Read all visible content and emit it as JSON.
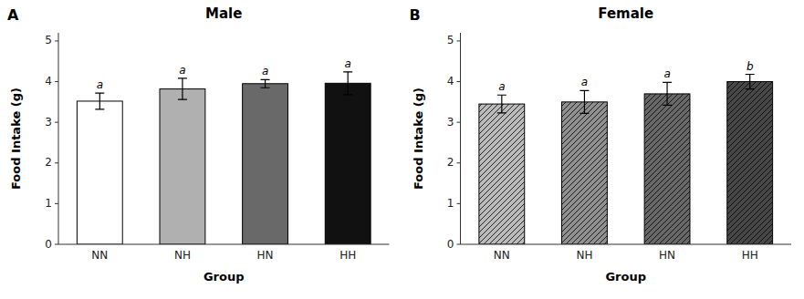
{
  "chart_data": [
    {
      "type": "bar",
      "title": "Male",
      "categories": [
        "NN",
        "NH",
        "HN",
        "HH"
      ],
      "values": [
        3.52,
        3.82,
        3.95,
        3.96
      ],
      "errors": [
        0.2,
        0.26,
        0.1,
        0.28
      ],
      "colors": [
        "#ffffff",
        "#b0b0b0",
        "#696969",
        "#111111"
      ],
      "x_label": "Group",
      "y_label": "Food Intake (g)",
      "ylim": [
        0,
        5.2
      ],
      "yticks": [
        0,
        1,
        2,
        3,
        4,
        5
      ],
      "grid": false,
      "annotations": [
        {
          "text": "A"
        },
        {
          "text": "a",
          "x": "NN"
        },
        {
          "text": "a",
          "x": "NH"
        },
        {
          "text": "a",
          "x": "HN"
        },
        {
          "text": "a",
          "x": "HH"
        }
      ]
    },
    {
      "type": "bar",
      "title": "Female",
      "categories": [
        "NN",
        "NH",
        "HN",
        "HH"
      ],
      "values": [
        3.45,
        3.5,
        3.7,
        4.0
      ],
      "errors": [
        0.22,
        0.28,
        0.28,
        0.18
      ],
      "colors": [
        "#bbbbbb",
        "#909090",
        "#686868",
        "#484848"
      ],
      "x_label": "Group",
      "y_label": "Food Intake (g)",
      "ylim": [
        0,
        5.2
      ],
      "yticks": [
        0,
        1,
        2,
        3,
        4,
        5
      ],
      "grid": false,
      "annotations": [
        {
          "text": "B"
        },
        {
          "text": "a",
          "x": "NN"
        },
        {
          "text": "a",
          "x": "NH"
        },
        {
          "text": "a",
          "x": "HN"
        },
        {
          "text": "b",
          "x": "HH"
        }
      ]
    }
  ]
}
